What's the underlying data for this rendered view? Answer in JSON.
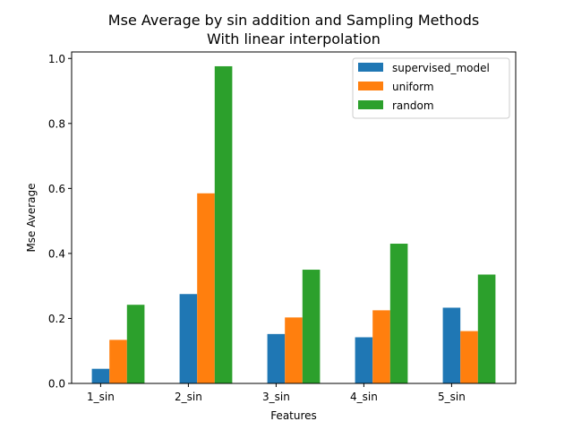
{
  "chart_data": {
    "type": "bar",
    "title": "Mse Average by sin addition and Sampling Methods",
    "subtitle": "With linear interpolation",
    "xlabel": "Features",
    "ylabel": "Mse Average",
    "categories": [
      "1_sin",
      "2_sin",
      "3_sin",
      "4_sin",
      "5_sin"
    ],
    "ylim": [
      0,
      1.02
    ],
    "yticks": [
      "0.0",
      "0.2",
      "0.4",
      "0.6",
      "0.8",
      "1.0"
    ],
    "grid": false,
    "legend_position": "top-right",
    "series": [
      {
        "name": "supervised_model",
        "color": "#1f77b4",
        "values": [
          0.045,
          0.275,
          0.152,
          0.142,
          0.233
        ]
      },
      {
        "name": "uniform",
        "color": "#ff7f0e",
        "values": [
          0.134,
          0.585,
          0.203,
          0.225,
          0.161
        ]
      },
      {
        "name": "random",
        "color": "#2ca02c",
        "values": [
          0.242,
          0.976,
          0.35,
          0.43,
          0.335
        ]
      }
    ]
  }
}
